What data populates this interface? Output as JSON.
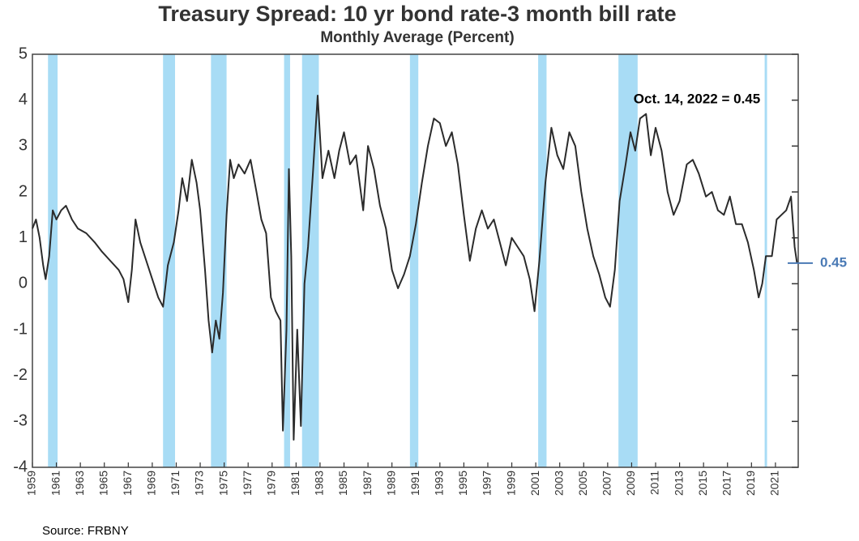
{
  "chart_data": {
    "type": "line",
    "title": "Treasury Spread: 10 yr bond rate-3 month bill rate",
    "subtitle": "Monthly Average (Percent)",
    "source": "Source: FRBNY",
    "annotation": "Oct. 14, 2022 = 0.45",
    "marker": 0.45,
    "marker_color": "#4a7ab5",
    "color": "#2b2b2b",
    "recession_color": "#a8dcf5",
    "recessions": [
      [
        1960.3,
        1961.1
      ],
      [
        1969.9,
        1970.9
      ],
      [
        1973.9,
        1975.2
      ],
      [
        1980.0,
        1980.5
      ],
      [
        1981.5,
        1982.9
      ],
      [
        1990.5,
        1991.2
      ],
      [
        2001.2,
        2001.9
      ],
      [
        2007.9,
        2009.5
      ],
      [
        2020.1,
        2020.3
      ]
    ],
    "x": [
      1959.0,
      1959.3,
      1959.6,
      1959.9,
      1960.1,
      1960.4,
      1960.7,
      1961.0,
      1961.4,
      1961.8,
      1962.3,
      1962.8,
      1963.5,
      1964.2,
      1964.8,
      1965.5,
      1966.2,
      1966.6,
      1967.0,
      1967.3,
      1967.6,
      1968.0,
      1968.5,
      1969.0,
      1969.5,
      1969.9,
      1970.3,
      1970.8,
      1971.2,
      1971.5,
      1971.9,
      1972.3,
      1972.7,
      1973.0,
      1973.4,
      1973.7,
      1974.0,
      1974.3,
      1974.6,
      1974.9,
      1975.2,
      1975.5,
      1975.8,
      1976.2,
      1976.7,
      1977.2,
      1977.7,
      1978.1,
      1978.5,
      1978.9,
      1979.3,
      1979.7,
      1979.9,
      1980.2,
      1980.4,
      1980.6,
      1980.8,
      1981.1,
      1981.4,
      1981.7,
      1982.0,
      1982.4,
      1982.8,
      1983.2,
      1983.7,
      1984.2,
      1984.6,
      1985.0,
      1985.5,
      1986.0,
      1986.6,
      1987.0,
      1987.5,
      1988.0,
      1988.5,
      1989.0,
      1989.5,
      1990.0,
      1990.5,
      1991.0,
      1991.5,
      1992.0,
      1992.5,
      1993.0,
      1993.5,
      1994.0,
      1994.5,
      1995.0,
      1995.5,
      1996.0,
      1996.5,
      1997.0,
      1997.5,
      1998.0,
      1998.5,
      1999.0,
      1999.5,
      2000.0,
      2000.5,
      2000.9,
      2001.3,
      2001.8,
      2002.3,
      2002.8,
      2003.3,
      2003.8,
      2004.3,
      2004.8,
      2005.3,
      2005.8,
      2006.3,
      2006.8,
      2007.2,
      2007.6,
      2008.0,
      2008.5,
      2008.9,
      2009.3,
      2009.7,
      2010.2,
      2010.6,
      2011.0,
      2011.5,
      2012.0,
      2012.5,
      2013.0,
      2013.6,
      2014.1,
      2014.6,
      2015.2,
      2015.7,
      2016.2,
      2016.7,
      2017.2,
      2017.7,
      2018.2,
      2018.7,
      2019.2,
      2019.6,
      2019.9,
      2020.2,
      2020.7,
      2021.1,
      2021.5,
      2021.9,
      2022.3,
      2022.6,
      2022.8
    ],
    "values": [
      1.2,
      1.4,
      1.0,
      0.4,
      0.1,
      0.6,
      1.6,
      1.4,
      1.6,
      1.7,
      1.4,
      1.2,
      1.1,
      0.9,
      0.7,
      0.5,
      0.3,
      0.1,
      -0.4,
      0.3,
      1.4,
      0.9,
      0.5,
      0.1,
      -0.3,
      -0.5,
      0.4,
      0.9,
      1.6,
      2.3,
      1.8,
      2.7,
      2.2,
      1.6,
      0.3,
      -0.8,
      -1.5,
      -0.8,
      -1.2,
      -0.2,
      1.5,
      2.7,
      2.3,
      2.6,
      2.4,
      2.7,
      2.0,
      1.4,
      1.1,
      -0.3,
      -0.6,
      -0.8,
      -3.2,
      -1.0,
      2.5,
      0.6,
      -3.4,
      -1.0,
      -3.1,
      0.0,
      0.8,
      2.4,
      4.1,
      2.3,
      2.9,
      2.3,
      2.9,
      3.3,
      2.6,
      2.8,
      1.6,
      3.0,
      2.5,
      1.7,
      1.2,
      0.3,
      -0.1,
      0.2,
      0.6,
      1.3,
      2.2,
      3.0,
      3.6,
      3.5,
      3.0,
      3.3,
      2.6,
      1.5,
      0.5,
      1.2,
      1.6,
      1.2,
      1.4,
      0.9,
      0.4,
      1.0,
      0.8,
      0.6,
      0.1,
      -0.6,
      0.5,
      2.2,
      3.4,
      2.8,
      2.5,
      3.3,
      3.0,
      2.0,
      1.2,
      0.6,
      0.2,
      -0.3,
      -0.5,
      0.3,
      1.8,
      2.6,
      3.3,
      2.9,
      3.6,
      3.7,
      2.8,
      3.4,
      2.9,
      2.0,
      1.5,
      1.8,
      2.6,
      2.7,
      2.4,
      1.9,
      2.0,
      1.6,
      1.5,
      1.9,
      1.3,
      1.3,
      0.9,
      0.3,
      -0.3,
      0.0,
      0.6,
      0.6,
      1.4,
      1.5,
      1.6,
      1.9,
      0.8,
      0.45
    ],
    "xlim": [
      1959,
      2022.9
    ],
    "xticks": [
      1959,
      1961,
      1963,
      1965,
      1967,
      1969,
      1971,
      1973,
      1975,
      1977,
      1979,
      1981,
      1983,
      1985,
      1987,
      1989,
      1991,
      1993,
      1995,
      1997,
      1999,
      2001,
      2003,
      2005,
      2007,
      2009,
      2011,
      2013,
      2015,
      2017,
      2019,
      2021
    ],
    "ylim": [
      -4,
      5
    ],
    "yticks": [
      -4,
      -3,
      -2,
      -1,
      0,
      1,
      2,
      3,
      4,
      5
    ]
  }
}
